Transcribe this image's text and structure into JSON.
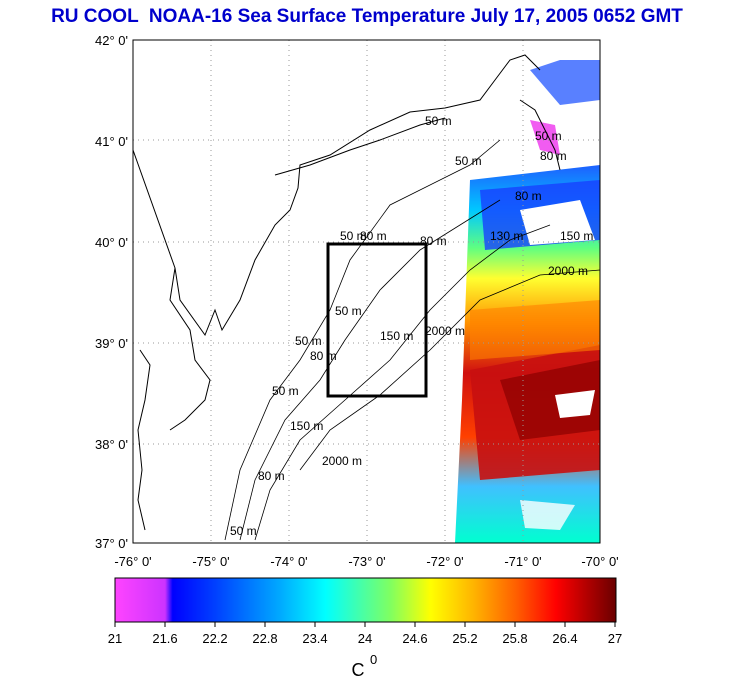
{
  "title": "RU COOL  NOAA-16 Sea Surface Temperature July 17, 2005 0652 GMT",
  "map": {
    "lon_range": [
      -76,
      -70
    ],
    "lat_range": [
      37,
      42
    ],
    "lon_ticks": [
      "-76° 0'",
      "-75° 0'",
      "-74° 0'",
      "-73° 0'",
      "-72° 0'",
      "-71° 0'",
      "-70° 0'"
    ],
    "lat_ticks": [
      "42° 0'",
      "41° 0'",
      "40° 0'",
      "39° 0'",
      "38° 0'",
      "37° 0'"
    ],
    "box": {
      "lon_min": -73.5,
      "lon_max": -72.5,
      "lat_min": 38.5,
      "lat_max": 40.0
    },
    "contour_labels": [
      "50 m",
      "50 m",
      "80 m",
      "130 m",
      "150 m",
      "2000 m",
      "80 m",
      "50 m",
      "80 m",
      "50 m",
      "150 m",
      "2000 m",
      "50 m",
      "80 m",
      "50 m",
      "150 m",
      "80 m",
      "50 m",
      "2000 m",
      "80 m",
      "50 m"
    ],
    "colors": {
      "land_outline": "#000000",
      "grid": "#999999",
      "box": "#000000"
    }
  },
  "colorbar": {
    "labels": [
      "21",
      "21.6",
      "22.2",
      "22.8",
      "23.4",
      "24",
      "24.6",
      "25.2",
      "25.8",
      "26.4",
      "27"
    ],
    "unit": "C",
    "unit_sup": "0",
    "min": 21,
    "max": 27,
    "colors": [
      "#ff40ff",
      "#cc33ff",
      "#0000ff",
      "#0060ff",
      "#00b0ff",
      "#00ffff",
      "#40ff80",
      "#c0ff00",
      "#ffff00",
      "#ffb000",
      "#ff6000",
      "#ff0000",
      "#c00000",
      "#700000"
    ]
  }
}
